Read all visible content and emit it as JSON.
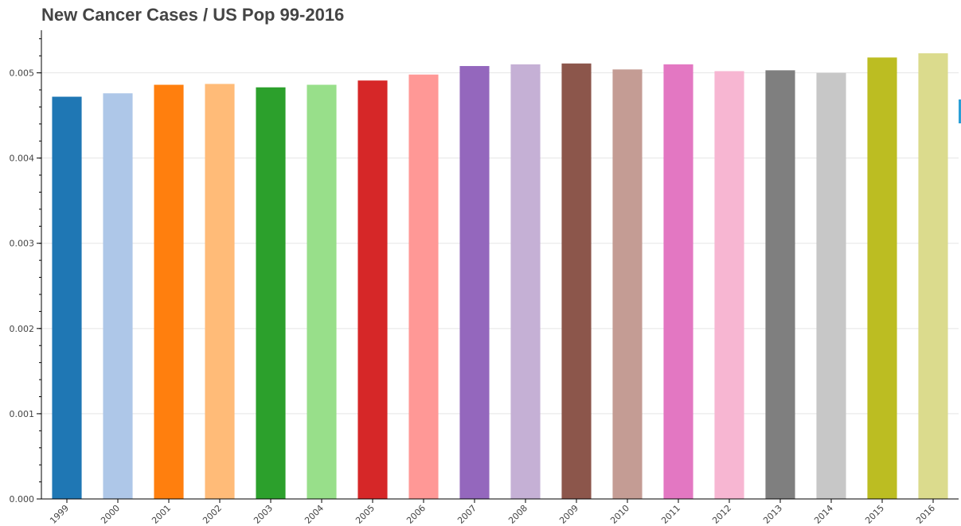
{
  "chart_data": {
    "type": "bar",
    "title": "New Cancer Cases / US Pop 99-2016",
    "xlabel": "",
    "ylabel": "",
    "categories": [
      "1999",
      "2000",
      "2001",
      "2002",
      "2003",
      "2004",
      "2005",
      "2006",
      "2007",
      "2008",
      "2009",
      "2010",
      "2011",
      "2012",
      "2013",
      "2014",
      "2015",
      "2016"
    ],
    "values": [
      0.00472,
      0.00476,
      0.00486,
      0.00487,
      0.00483,
      0.00486,
      0.00491,
      0.00498,
      0.00508,
      0.0051,
      0.00511,
      0.00504,
      0.0051,
      0.00502,
      0.00503,
      0.005,
      0.00518,
      0.00523
    ],
    "colors": [
      "#1f77b4",
      "#aec7e8",
      "#ff7f0e",
      "#ffbb78",
      "#2ca02c",
      "#98df8a",
      "#d62728",
      "#ff9896",
      "#9467bd",
      "#c5b0d5",
      "#8c564b",
      "#c49c94",
      "#e377c2",
      "#f7b6d2",
      "#7f7f7f",
      "#c7c7c7",
      "#bcbd22",
      "#dbdb8d"
    ],
    "yticks": [
      "0.000",
      "0.001",
      "0.002",
      "0.003",
      "0.004",
      "0.005"
    ],
    "ylim": [
      0,
      0.0055
    ],
    "grid": true,
    "legend": "none"
  }
}
